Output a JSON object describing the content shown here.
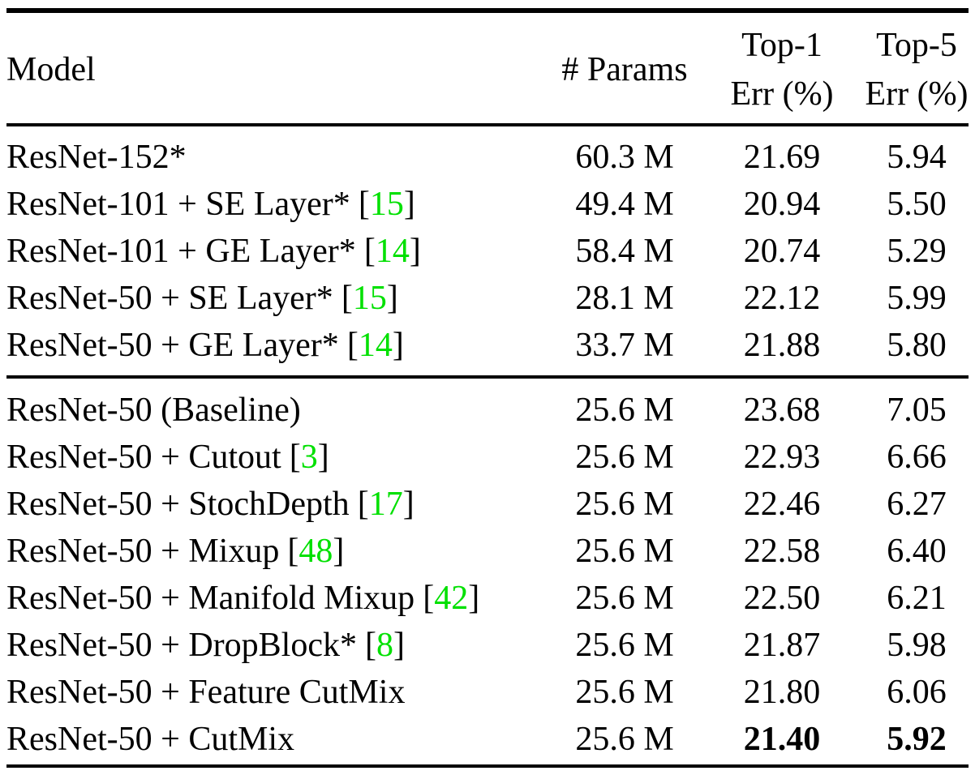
{
  "page": {
    "background": "#ffffff",
    "text_color": "#000000",
    "rule_color": "#000000"
  },
  "table": {
    "cite_color": "#00e000",
    "cite_open": "[",
    "cite_close": "]",
    "header": {
      "model": "Model",
      "params": "# Params",
      "top1": {
        "line1": "Top-1",
        "line2": "Err (%)"
      },
      "top5": {
        "line1": "Top-5",
        "line2": "Err (%)"
      }
    },
    "sections": [
      {
        "rows": [
          {
            "model": "ResNet-152*",
            "cite": null,
            "params": "60.3 M",
            "top1": "21.69",
            "top5": "5.94",
            "bold": false
          },
          {
            "model": "ResNet-101 + SE Layer*",
            "cite": "15",
            "params": "49.4 M",
            "top1": "20.94",
            "top5": "5.50",
            "bold": false
          },
          {
            "model": "ResNet-101 + GE Layer*",
            "cite": "14",
            "params": "58.4 M",
            "top1": "20.74",
            "top5": "5.29",
            "bold": false
          },
          {
            "model": "ResNet-50 + SE Layer*",
            "cite": "15",
            "params": "28.1 M",
            "top1": "22.12",
            "top5": "5.99",
            "bold": false
          },
          {
            "model": "ResNet-50 + GE Layer*",
            "cite": "14",
            "params": "33.7 M",
            "top1": "21.88",
            "top5": "5.80",
            "bold": false
          }
        ]
      },
      {
        "rows": [
          {
            "model": "ResNet-50 (Baseline)",
            "cite": null,
            "params": "25.6 M",
            "top1": "23.68",
            "top5": "7.05",
            "bold": false
          },
          {
            "model": "ResNet-50 + Cutout",
            "cite": "3",
            "params": "25.6 M",
            "top1": "22.93",
            "top5": "6.66",
            "bold": false
          },
          {
            "model": "ResNet-50 + StochDepth",
            "cite": "17",
            "params": "25.6 M",
            "top1": "22.46",
            "top5": "6.27",
            "bold": false
          },
          {
            "model": "ResNet-50 + Mixup",
            "cite": "48",
            "params": "25.6 M",
            "top1": "22.58",
            "top5": "6.40",
            "bold": false
          },
          {
            "model": "ResNet-50 + Manifold Mixup",
            "cite": "42",
            "params": "25.6 M",
            "top1": "22.50",
            "top5": "6.21",
            "bold": false
          },
          {
            "model": "ResNet-50 + DropBlock*",
            "cite": "8",
            "params": "25.6 M",
            "top1": "21.87",
            "top5": "5.98",
            "bold": false
          },
          {
            "model": "ResNet-50 + Feature CutMix",
            "cite": null,
            "params": "25.6 M",
            "top1": "21.80",
            "top5": "6.06",
            "bold": false
          },
          {
            "model": "ResNet-50 + CutMix",
            "cite": null,
            "params": "25.6 M",
            "top1": "21.40",
            "top5": "5.92",
            "bold": true
          }
        ]
      }
    ]
  }
}
